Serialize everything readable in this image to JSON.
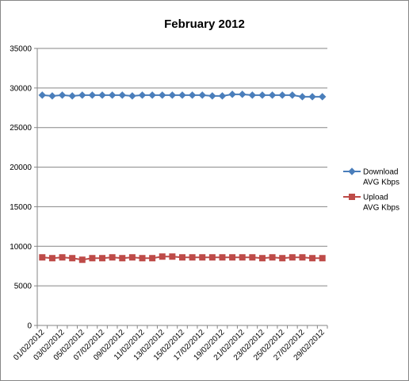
{
  "chart_data": {
    "type": "line",
    "title": "February 2012",
    "xlabel": "",
    "ylabel": "",
    "ylim": [
      0,
      35000
    ],
    "yticks": [
      0,
      5000,
      10000,
      15000,
      20000,
      25000,
      30000,
      35000
    ],
    "grid": true,
    "legend_position": "right",
    "categories": [
      "01/02/2012",
      "02/02/2012",
      "03/02/2012",
      "04/02/2012",
      "05/02/2012",
      "06/02/2012",
      "07/02/2012",
      "08/02/2012",
      "09/02/2012",
      "10/02/2012",
      "11/02/2012",
      "12/02/2012",
      "13/02/2012",
      "14/02/2012",
      "15/02/2012",
      "16/02/2012",
      "17/02/2012",
      "18/02/2012",
      "19/02/2012",
      "20/02/2012",
      "21/02/2012",
      "22/02/2012",
      "23/02/2012",
      "24/02/2012",
      "25/02/2012",
      "26/02/2012",
      "27/02/2012",
      "28/02/2012",
      "29/02/2012"
    ],
    "xtick_labels": [
      "01/02/2012",
      "03/02/2012",
      "05/02/2012",
      "07/02/2012",
      "09/02/2012",
      "11/02/2012",
      "13/02/2012",
      "15/02/2012",
      "17/02/2012",
      "19/02/2012",
      "21/02/2012",
      "23/02/2012",
      "25/02/2012",
      "27/02/2012",
      "29/02/2012"
    ],
    "series": [
      {
        "name": "Download AVG Kbps",
        "name_lines": [
          "Download",
          "AVG Kbps"
        ],
        "color": "#4a7ebb",
        "marker": "diamond",
        "values": [
          29100,
          29000,
          29100,
          29000,
          29100,
          29100,
          29100,
          29100,
          29100,
          29000,
          29100,
          29100,
          29100,
          29100,
          29100,
          29100,
          29100,
          29000,
          29000,
          29200,
          29200,
          29100,
          29100,
          29100,
          29100,
          29100,
          28900,
          28900,
          28900
        ]
      },
      {
        "name": "Upload AVG Kbps",
        "name_lines": [
          "Upload",
          "AVG Kbps"
        ],
        "color": "#be4b48",
        "marker": "square",
        "values": [
          8600,
          8500,
          8600,
          8500,
          8300,
          8500,
          8500,
          8600,
          8500,
          8600,
          8500,
          8500,
          8700,
          8700,
          8600,
          8600,
          8600,
          8600,
          8600,
          8600,
          8600,
          8600,
          8500,
          8600,
          8500,
          8600,
          8600,
          8500,
          8500
        ]
      }
    ]
  }
}
